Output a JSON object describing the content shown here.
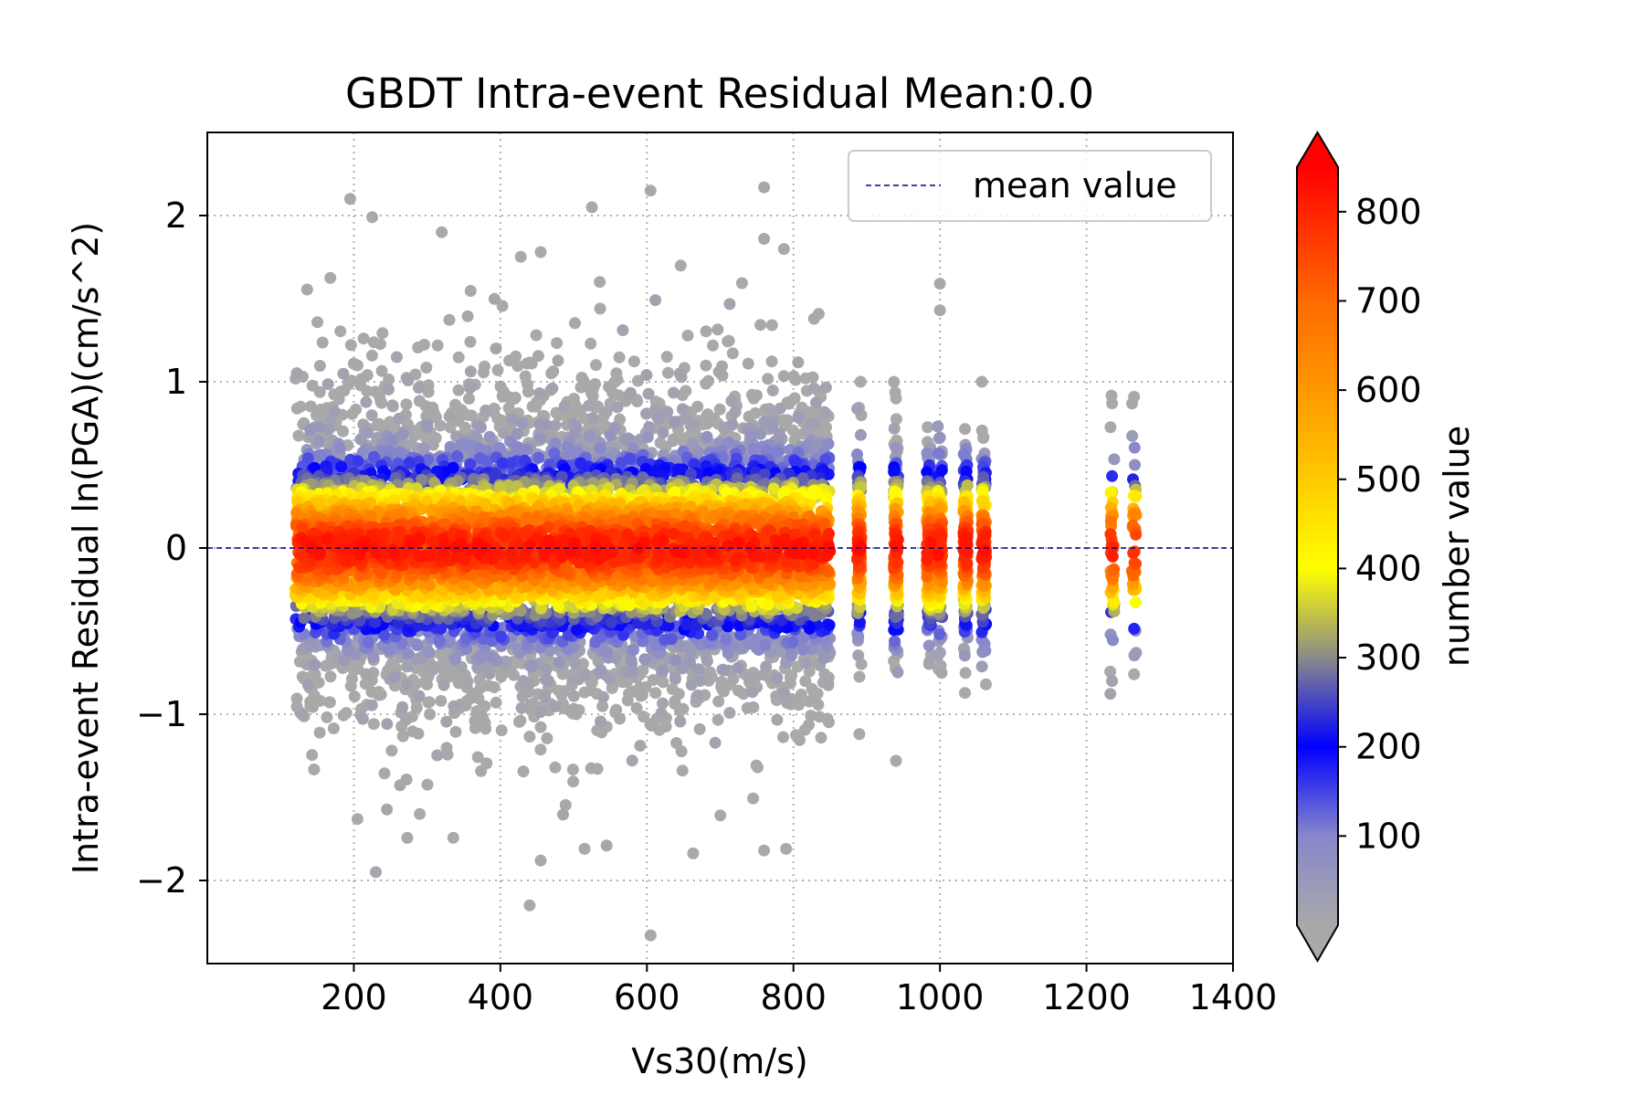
{
  "chart_data": {
    "type": "scatter",
    "title": "GBDT Intra-event Residual Mean:0.0",
    "xlabel": "Vs30(m/s)",
    "ylabel": "Intra-event Residual ln(PGA)(cm/s^2)",
    "xlim": [
      0,
      1400
    ],
    "ylim": [
      -2.5,
      2.5
    ],
    "xticks": [
      200,
      400,
      600,
      800,
      1000,
      1200,
      1400
    ],
    "xtick_labels": [
      "200",
      "400",
      "600",
      "800",
      "1000",
      "1200",
      "1400"
    ],
    "yticks": [
      -2,
      -1,
      0,
      1,
      2
    ],
    "ytick_labels": [
      "−2",
      "−1",
      "0",
      "1",
      "2"
    ],
    "grid": true,
    "legend": {
      "placement": "upper right",
      "entries": [
        "mean value"
      ]
    },
    "mean_value": 0.0,
    "mean_line_color": "#00008b",
    "colorbar": {
      "label": "number value",
      "range": [
        0,
        850
      ],
      "ticks": [
        100,
        200,
        300,
        400,
        500,
        600,
        700,
        800
      ],
      "tick_labels": [
        "100",
        "200",
        "300",
        "400",
        "500",
        "600",
        "700",
        "800"
      ],
      "extend": "both",
      "colormap": [
        {
          "value": 0,
          "color": "#a9a9a9"
        },
        {
          "value": 100,
          "color": "#8787cc"
        },
        {
          "value": 200,
          "color": "#0000ff"
        },
        {
          "value": 300,
          "color": "#8a8a8a"
        },
        {
          "value": 400,
          "color": "#ffff00"
        },
        {
          "value": 550,
          "color": "#ffb000"
        },
        {
          "value": 700,
          "color": "#ff6a00"
        },
        {
          "value": 850,
          "color": "#ff0000"
        }
      ],
      "under_color": "#a9a9a9",
      "over_color": "#ff0000"
    },
    "point_distribution": {
      "vs30_dense_range": [
        120,
        850
      ],
      "vs30_station_columns": [
        890,
        940,
        985,
        1000,
        1035,
        1060,
        1235,
        1265
      ],
      "residual_mean": 0.0,
      "residual_extent": [
        -2.35,
        2.18
      ]
    },
    "highlight_points": [
      {
        "x": 605,
        "y": 2.15
      },
      {
        "x": 760,
        "y": 2.17
      },
      {
        "x": 525,
        "y": 2.05
      },
      {
        "x": 195,
        "y": 2.1
      },
      {
        "x": 225,
        "y": 1.99
      },
      {
        "x": 320,
        "y": 1.9
      },
      {
        "x": 760,
        "y": 1.86
      },
      {
        "x": 455,
        "y": 1.78
      },
      {
        "x": 1000,
        "y": 1.59
      },
      {
        "x": 1000,
        "y": 1.43
      },
      {
        "x": 940,
        "y": 0.9
      },
      {
        "x": 1235,
        "y": 0.87
      },
      {
        "x": 1265,
        "y": 0.91
      },
      {
        "x": 1235,
        "y": -0.8
      },
      {
        "x": 1265,
        "y": -0.76
      },
      {
        "x": 940,
        "y": -1.28
      },
      {
        "x": 890,
        "y": -1.12
      },
      {
        "x": 605,
        "y": -2.33
      },
      {
        "x": 440,
        "y": -2.15
      },
      {
        "x": 230,
        "y": -1.95
      },
      {
        "x": 455,
        "y": -1.88
      },
      {
        "x": 760,
        "y": -1.82
      },
      {
        "x": 790,
        "y": -1.81
      },
      {
        "x": 515,
        "y": -1.81
      },
      {
        "x": 545,
        "y": -1.79
      },
      {
        "x": 205,
        "y": -1.63
      },
      {
        "x": 290,
        "y": -1.6
      }
    ]
  }
}
